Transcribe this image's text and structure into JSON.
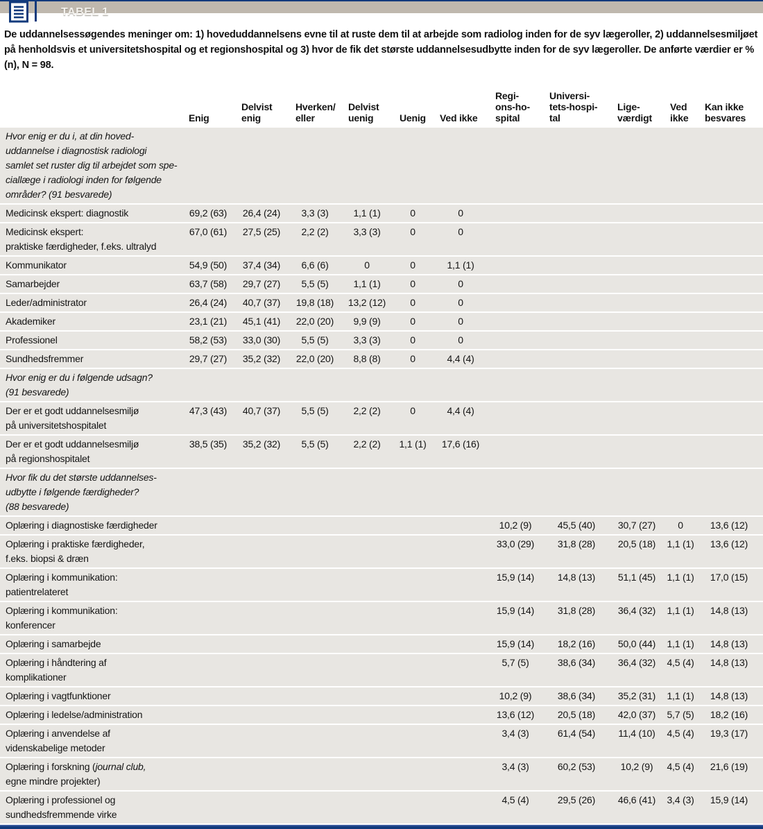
{
  "header": {
    "title": "TABEL 1",
    "icon": "table-list-icon"
  },
  "caption": "De uddannelsessøgendes meninger om: 1) hoveduddannelsens evne til at ruste dem til at arbejde som radiolog inden for de syv lægeroller, 2) uddannelsesmiljøet på henholdsvis et universitetshospital og et regionshospital og 3) hvor de fik det største uddannelsesudbytte inden for de syv lægeroller. De anførte værdier er % (n), N = 98.",
  "colors": {
    "accent_navy": "#123a7c",
    "titlebar_gray": "#bfb8ae",
    "row_band": "#e8e6e2",
    "title_text": "#f4f2ee"
  },
  "table": {
    "columns": [
      "",
      "Enig",
      "Delvist\nenig",
      "Hverken/\neller",
      "Delvist\nuenig",
      "Uenig",
      "Ved ikke",
      "Regi-\nons-ho-\nspital",
      "Universi-\ntets-hospi-\ntal",
      "Lige-\nværdigt",
      "Ved\nikke",
      "Kan ikke\nbesvares"
    ],
    "rows": [
      {
        "type": "section",
        "text": "Hvor enig er du i, at din hoved-\nuddannelse i diagnostisk radiologi\nsamlet set ruster dig til arbejdet som spe-\nciallæge i radiologi inden for følgende\nområder? (91 besvarede)"
      },
      {
        "type": "data",
        "label": "Medicinsk ekspert: diagnostik",
        "cells": [
          "69,2 (63)",
          "26,4 (24)",
          "3,3 (3)",
          "1,1 (1)",
          "0",
          "0",
          "",
          "",
          "",
          "",
          ""
        ]
      },
      {
        "type": "data",
        "label": "Medicinsk ekspert:\npraktiske færdigheder, f.eks. ultralyd",
        "cells": [
          "67,0 (61)",
          "27,5 (25)",
          "2,2 (2)",
          "3,3 (3)",
          "0",
          "0",
          "",
          "",
          "",
          "",
          ""
        ]
      },
      {
        "type": "data",
        "label": "Kommunikator",
        "cells": [
          "54,9 (50)",
          "37,4 (34)",
          "6,6 (6)",
          "0",
          "0",
          "1,1 (1)",
          "",
          "",
          "",
          "",
          ""
        ]
      },
      {
        "type": "data",
        "label": "Samarbejder",
        "cells": [
          "63,7 (58)",
          "29,7 (27)",
          "5,5 (5)",
          "1,1 (1)",
          "0",
          "0",
          "",
          "",
          "",
          "",
          ""
        ]
      },
      {
        "type": "data",
        "label": "Leder/administrator",
        "cells": [
          "26,4 (24)",
          "40,7 (37)",
          "19,8 (18)",
          "13,2 (12)",
          "0",
          "0",
          "",
          "",
          "",
          "",
          ""
        ]
      },
      {
        "type": "data",
        "label": "Akademiker",
        "cells": [
          "23,1 (21)",
          "45,1 (41)",
          "22,0 (20)",
          "9,9 (9)",
          "0",
          "0",
          "",
          "",
          "",
          "",
          ""
        ]
      },
      {
        "type": "data",
        "label": "Professionel",
        "cells": [
          "58,2 (53)",
          "33,0 (30)",
          "5,5 (5)",
          "3,3 (3)",
          "0",
          "0",
          "",
          "",
          "",
          "",
          ""
        ]
      },
      {
        "type": "data",
        "label": "Sundhedsfremmer",
        "cells": [
          "29,7 (27)",
          "35,2 (32)",
          "22,0 (20)",
          "8,8 (8)",
          "0",
          "4,4 (4)",
          "",
          "",
          "",
          "",
          ""
        ]
      },
      {
        "type": "section",
        "text": "Hvor enig er du i følgende udsagn?\n(91 besvarede)"
      },
      {
        "type": "data",
        "label": "Der er et godt uddannelsesmiljø\npå universitetshospitalet",
        "cells": [
          "47,3 (43)",
          "40,7 (37)",
          "5,5 (5)",
          "2,2 (2)",
          "0",
          "4,4 (4)",
          "",
          "",
          "",
          "",
          ""
        ]
      },
      {
        "type": "data",
        "label": "Der er et godt uddannelsesmiljø\npå regionshospitalet",
        "cells": [
          "38,5 (35)",
          "35,2 (32)",
          "5,5 (5)",
          "2,2 (2)",
          "1,1 (1)",
          "17,6 (16)",
          "",
          "",
          "",
          "",
          ""
        ]
      },
      {
        "type": "section",
        "text": "Hvor fik du det største uddannelses-\nudbytte i følgende færdigheder?\n(88 besvarede)"
      },
      {
        "type": "data",
        "label": "Oplæring i diagnostiske færdigheder",
        "cells": [
          "",
          "",
          "",
          "",
          "",
          "",
          "10,2 (9)",
          "45,5 (40)",
          "30,7 (27)",
          "0",
          "13,6 (12)"
        ]
      },
      {
        "type": "data",
        "label": "Oplæring i praktiske færdigheder,\nf.eks. biopsi & dræn",
        "cells": [
          "",
          "",
          "",
          "",
          "",
          "",
          "33,0 (29)",
          "31,8 (28)",
          "20,5 (18)",
          "1,1 (1)",
          "13,6 (12)"
        ]
      },
      {
        "type": "data",
        "label": "Oplæring i kommunikation:\npatientrelateret",
        "cells": [
          "",
          "",
          "",
          "",
          "",
          "",
          "15,9 (14)",
          "14,8 (13)",
          "51,1 (45)",
          "1,1 (1)",
          "17,0 (15)"
        ]
      },
      {
        "type": "data",
        "label": "Oplæring i kommunikation:\nkonferencer",
        "cells": [
          "",
          "",
          "",
          "",
          "",
          "",
          "15,9 (14)",
          "31,8 (28)",
          "36,4 (32)",
          "1,1 (1)",
          "14,8 (13)"
        ]
      },
      {
        "type": "data",
        "label": "Oplæring i samarbejde",
        "cells": [
          "",
          "",
          "",
          "",
          "",
          "",
          "15,9 (14)",
          "18,2 (16)",
          "50,0 (44)",
          "1,1 (1)",
          "14,8 (13)"
        ]
      },
      {
        "type": "data",
        "label": "Oplæring i håndtering af\nkomplikationer",
        "cells": [
          "",
          "",
          "",
          "",
          "",
          "",
          "5,7 (5)",
          "38,6 (34)",
          "36,4 (32)",
          "4,5 (4)",
          "14,8 (13)"
        ]
      },
      {
        "type": "data",
        "label": "Oplæring i vagtfunktioner",
        "cells": [
          "",
          "",
          "",
          "",
          "",
          "",
          "10,2 (9)",
          "38,6 (34)",
          "35,2 (31)",
          "1,1 (1)",
          "14,8 (13)"
        ]
      },
      {
        "type": "data",
        "label": "Oplæring i ledelse/administration",
        "cells": [
          "",
          "",
          "",
          "",
          "",
          "",
          "13,6 (12)",
          "20,5 (18)",
          "42,0 (37)",
          "5,7 (5)",
          "18,2 (16)"
        ]
      },
      {
        "type": "data",
        "label": "Oplæring i anvendelse af\nvidenskabelige metoder",
        "cells": [
          "",
          "",
          "",
          "",
          "",
          "",
          "3,4 (3)",
          "61,4 (54)",
          "11,4 (10)",
          "4,5 (4)",
          "19,3 (17)"
        ]
      },
      {
        "type": "data",
        "label": "Oplæring i forskning ({i}journal club,{/i}\negne mindre projekter)",
        "cells": [
          "",
          "",
          "",
          "",
          "",
          "",
          "3,4 (3)",
          "60,2 (53)",
          "10,2 (9)",
          "4,5 (4)",
          "21,6 (19)"
        ]
      },
      {
        "type": "data",
        "label": "Oplæring i professionel og\nsundhedsfremmende virke",
        "cells": [
          "",
          "",
          "",
          "",
          "",
          "",
          "4,5 (4)",
          "29,5 (26)",
          "46,6 (41)",
          "3,4 (3)",
          "15,9 (14)"
        ]
      }
    ]
  }
}
